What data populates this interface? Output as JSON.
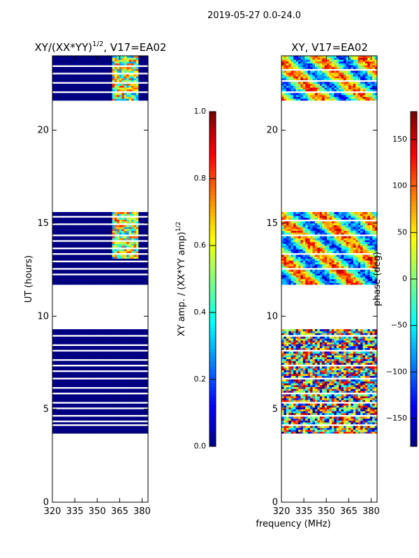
{
  "suptitle": "2019-05-27 0.0-24.0",
  "shared_xlabel": "frequency (MHz)",
  "colors": {
    "empty_fill": "#ffffff",
    "amp_floor": "#00007f"
  },
  "chart_data": [
    {
      "type": "heatmap",
      "title_main": "XY/(XX*YY)",
      "title_sup": "1/2",
      "title_tail": ", V17=EA02",
      "ylabel": "UT (hours)",
      "xlim": [
        320,
        384
      ],
      "ylim": [
        0,
        24
      ],
      "xticks": [
        320,
        335,
        350,
        365,
        380
      ],
      "yticks": [
        0,
        5,
        10,
        15,
        20
      ],
      "data_hours": [
        [
          3.7,
          9.3
        ],
        [
          11.7,
          15.6
        ],
        [
          21.6,
          24.0
        ]
      ],
      "gap_rows": [
        4.1,
        4.3,
        4.6,
        5.0,
        5.3,
        5.8,
        6.1,
        6.6,
        7.0,
        7.3,
        7.6,
        8.1,
        8.4,
        8.9,
        12.2,
        12.5,
        12.9,
        13.3,
        13.6,
        14.0,
        14.3,
        14.9,
        15.3,
        22.0,
        22.5,
        23.0,
        23.4
      ],
      "bright_band_mhz": [
        360,
        378
      ],
      "colorbar": {
        "label_main": "XY amp. / (XX*YY amp)",
        "label_sup": "1/2",
        "min": 0.0,
        "max": 1.0,
        "ticks": [
          "0.0",
          "0.2",
          "0.4",
          "0.6",
          "0.8",
          "1.0"
        ]
      }
    },
    {
      "type": "heatmap",
      "title": "XY, V17=EA02",
      "xlim": [
        320,
        384
      ],
      "ylim": [
        0,
        24
      ],
      "xticks": [
        320,
        335,
        350,
        365,
        380
      ],
      "yticks": [
        0,
        5,
        10,
        15,
        20
      ],
      "data_hours": [
        [
          3.7,
          9.3
        ],
        [
          11.7,
          15.6
        ],
        [
          21.6,
          24.0
        ]
      ],
      "gap_rows": [
        4.1,
        4.6,
        5.3,
        5.8,
        6.6,
        7.3,
        8.1,
        8.9,
        12.5,
        13.3,
        14.3,
        15.1,
        22.0,
        22.6,
        23.2
      ],
      "colorbar": {
        "label": "phase (deg)",
        "min": -180,
        "max": 180,
        "ticks": [
          "150",
          "100",
          "50",
          "0",
          "−50",
          "−100",
          "−150"
        ],
        "tick_values": [
          150,
          100,
          50,
          0,
          -50,
          -100,
          -150
        ]
      }
    }
  ]
}
